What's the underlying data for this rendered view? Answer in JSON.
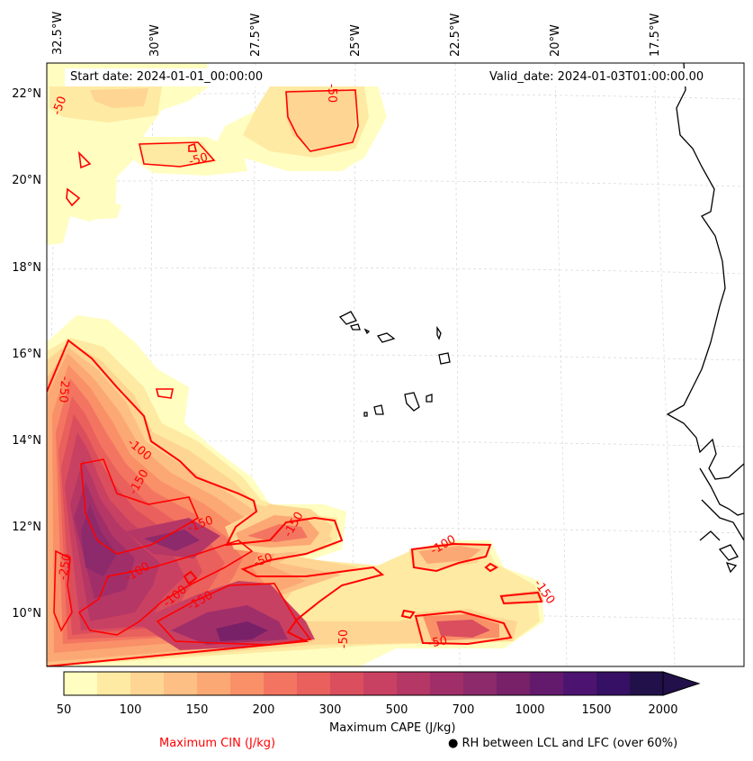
{
  "header": {
    "start_date": "Start date: 2024-01-01_00:00:00",
    "valid_date": "Valid_date: 2024-01-03T01:00:00.00"
  },
  "map": {
    "region": "Eastern tropical Atlantic (Cape Verde / West Africa coast)",
    "lon_labels": [
      "32.5°W",
      "30°W",
      "27.5°W",
      "25°W",
      "22.5°W",
      "20°W",
      "17.5°W"
    ],
    "lat_labels": [
      "22°N",
      "20°N",
      "18°N",
      "16°N",
      "14°N",
      "12°N",
      "10°N"
    ],
    "contour_labels": [
      "-50",
      "-50",
      "-50",
      "-100",
      "-150",
      "-100",
      "-250",
      "-150",
      "-150",
      "-50",
      "-100",
      "-150",
      "-50",
      "-50",
      "-250",
      "-100",
      "-150"
    ]
  },
  "colorbar": {
    "ticks": [
      "50",
      "100",
      "150",
      "200",
      "300",
      "500",
      "700",
      "1000",
      "1500",
      "2000"
    ],
    "colors": [
      "#fffdc0",
      "#feeaa2",
      "#fed593",
      "#fdbf84",
      "#fca874",
      "#f99068",
      "#f37561",
      "#e9605c",
      "#da4e5d",
      "#c94162",
      "#b53766",
      "#a02f69",
      "#8c2a6b",
      "#782169",
      "#631a6d",
      "#4c1470",
      "#361064",
      "#211049"
    ],
    "label": "Maximum CAPE (J/kg)",
    "cin_label": "Maximum CIN (J/kg)",
    "rh_label": "● RH between LCL and LFC (over 60%)"
  },
  "colors": {
    "cin_contour": "#ff0000",
    "coastline": "#000000",
    "grid": "#d6d6d6"
  }
}
